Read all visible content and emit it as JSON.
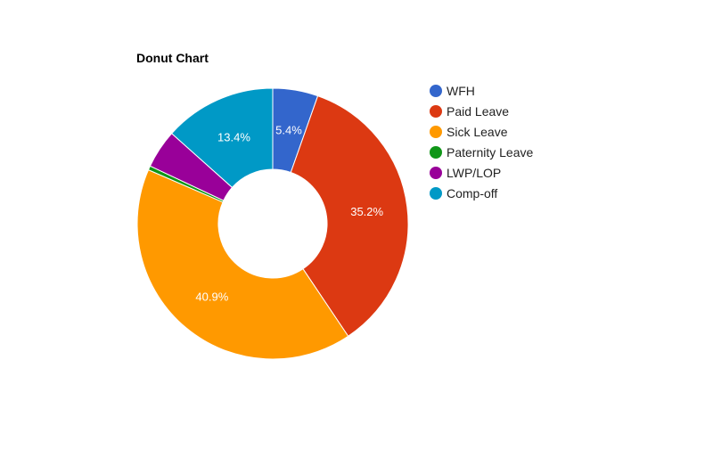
{
  "chart_data": {
    "type": "pie",
    "title": "Donut Chart",
    "donut": true,
    "series": [
      {
        "name": "WFH",
        "value": 5.4,
        "label": "5.4%",
        "color": "#3366cc"
      },
      {
        "name": "Paid Leave",
        "value": 35.2,
        "label": "35.2%",
        "color": "#dc3912"
      },
      {
        "name": "Sick Leave",
        "value": 40.9,
        "label": "40.9%",
        "color": "#ff9900"
      },
      {
        "name": "Paternity Leave",
        "value": 0.5,
        "label": "",
        "color": "#109618"
      },
      {
        "name": "LWP/LOP",
        "value": 4.6,
        "label": "",
        "color": "#990099"
      },
      {
        "name": "Comp-off",
        "value": 13.4,
        "label": "13.4%",
        "color": "#0099c6"
      }
    ],
    "legend_position": "right"
  }
}
